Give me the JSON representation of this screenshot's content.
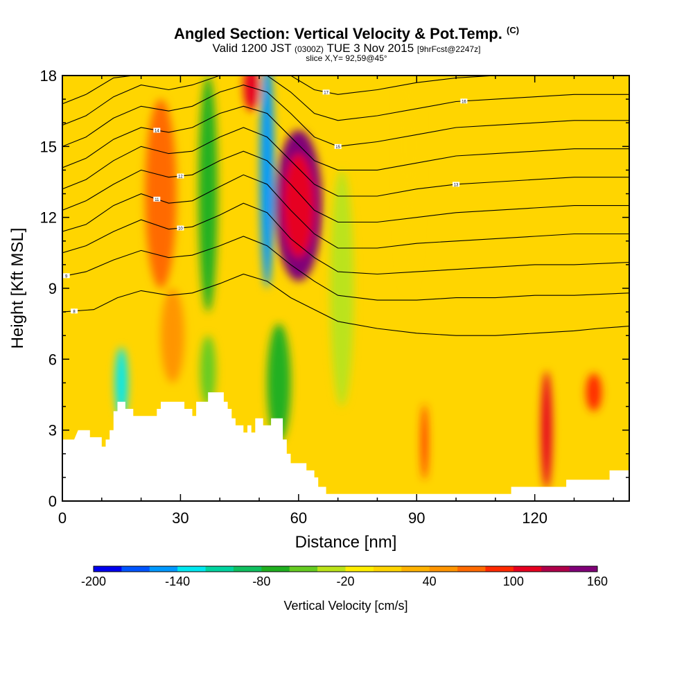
{
  "header": {
    "title": "Angled Section: Vertical Velocity & Pot.Temp.",
    "title_unit": "(C)",
    "valid_prefix": "Valid 1200 JST",
    "valid_zulu": "(0300Z)",
    "valid_date": "TUE 3 Nov 2015",
    "forecast": "[9hrFcst@2247z]",
    "slice": "slice X,Y= 92,59@45°"
  },
  "chart_data": {
    "type": "heatmap",
    "xlabel": "Distance [nm]",
    "ylabel": "Height [Kft MSL]",
    "xlim": [
      0,
      144
    ],
    "ylim": [
      0,
      18
    ],
    "x_ticks": [
      0,
      30,
      60,
      90,
      120
    ],
    "y_ticks": [
      0,
      3,
      6,
      9,
      12,
      15,
      18
    ],
    "grid": false,
    "legend": "colorbar-bottom",
    "fill_variable": "Vertical Velocity",
    "contour_variable": "Pot.Temp.",
    "background_value_cm_s": 0,
    "features": [
      {
        "x": 60,
        "y": 12.5,
        "w": 6,
        "h": 3.2,
        "value": 140
      },
      {
        "x": 60,
        "y": 12.5,
        "w": 4,
        "h": 2.2,
        "value": 110
      },
      {
        "x": 25,
        "y": 13.0,
        "w": 4,
        "h": 4.0,
        "value": 60
      },
      {
        "x": 28,
        "y": 7.0,
        "w": 3,
        "h": 2.0,
        "value": 55
      },
      {
        "x": 37,
        "y": 13.0,
        "w": 2.4,
        "h": 5.0,
        "value": -70
      },
      {
        "x": 52,
        "y": 14.0,
        "w": 1.8,
        "h": 5.0,
        "value": -150
      },
      {
        "x": 48,
        "y": 17.5,
        "w": 2.0,
        "h": 1.0,
        "value": 100
      },
      {
        "x": 55,
        "y": 5.0,
        "w": 3.0,
        "h": 2.5,
        "value": -80
      },
      {
        "x": 15,
        "y": 5.0,
        "w": 1.6,
        "h": 1.5,
        "value": -130
      },
      {
        "x": 37,
        "y": 5.5,
        "w": 2.0,
        "h": 1.5,
        "value": -50
      },
      {
        "x": 92,
        "y": 2.5,
        "w": 0.8,
        "h": 1.6,
        "value": 90
      },
      {
        "x": 123,
        "y": 3.0,
        "w": 1.4,
        "h": 2.5,
        "value": 100
      },
      {
        "x": 135,
        "y": 4.6,
        "w": 2.0,
        "h": 0.8,
        "value": 80
      },
      {
        "x": 88,
        "y": 15.0,
        "w": 2.5,
        "h": 6.0,
        "value": 15
      },
      {
        "x": 71,
        "y": 9.0,
        "w": 3.0,
        "h": 5.0,
        "value": -25
      }
    ],
    "terrain_kft": [
      [
        0,
        2.6
      ],
      [
        3,
        2.6
      ],
      [
        4,
        3.0
      ],
      [
        7,
        3.0
      ],
      [
        7,
        2.7
      ],
      [
        10,
        2.7
      ],
      [
        10,
        2.3
      ],
      [
        11,
        2.3
      ],
      [
        11,
        2.6
      ],
      [
        12,
        2.6
      ],
      [
        12,
        3.0
      ],
      [
        13,
        3.0
      ],
      [
        13,
        3.8
      ],
      [
        14,
        3.8
      ],
      [
        14,
        4.2
      ],
      [
        16,
        4.2
      ],
      [
        16,
        3.9
      ],
      [
        18,
        3.9
      ],
      [
        18,
        3.6
      ],
      [
        24,
        3.6
      ],
      [
        24,
        3.9
      ],
      [
        25,
        3.9
      ],
      [
        25,
        4.2
      ],
      [
        31,
        4.2
      ],
      [
        31,
        3.9
      ],
      [
        33,
        3.9
      ],
      [
        33,
        3.6
      ],
      [
        34,
        3.6
      ],
      [
        34,
        4.2
      ],
      [
        37,
        4.2
      ],
      [
        37,
        4.6
      ],
      [
        41,
        4.6
      ],
      [
        41,
        4.2
      ],
      [
        42,
        4.2
      ],
      [
        42,
        3.9
      ],
      [
        43,
        3.9
      ],
      [
        43,
        3.5
      ],
      [
        44,
        3.5
      ],
      [
        44,
        3.2
      ],
      [
        46,
        3.2
      ],
      [
        46,
        2.9
      ],
      [
        47,
        2.9
      ],
      [
        47,
        3.2
      ],
      [
        48,
        3.2
      ],
      [
        48,
        2.9
      ],
      [
        49,
        2.9
      ],
      [
        49,
        3.5
      ],
      [
        51,
        3.5
      ],
      [
        51,
        3.2
      ],
      [
        53,
        3.2
      ],
      [
        53,
        3.5
      ],
      [
        56,
        3.5
      ],
      [
        56,
        2.6
      ],
      [
        57,
        2.6
      ],
      [
        57,
        2.0
      ],
      [
        58,
        2.0
      ],
      [
        58,
        1.6
      ],
      [
        62,
        1.6
      ],
      [
        62,
        1.3
      ],
      [
        64,
        1.3
      ],
      [
        64,
        1.0
      ],
      [
        65,
        1.0
      ],
      [
        65,
        0.6
      ],
      [
        67,
        0.6
      ],
      [
        67,
        0.3
      ],
      [
        114,
        0.3
      ],
      [
        114,
        0.6
      ],
      [
        128,
        0.6
      ],
      [
        128,
        0.9
      ],
      [
        139,
        0.9
      ],
      [
        139,
        1.3
      ],
      [
        144,
        1.3
      ]
    ],
    "theta_contours": [
      {
        "label": "8",
        "label_x": 3,
        "pts": [
          [
            0,
            8.0
          ],
          [
            8,
            8.1
          ],
          [
            14,
            8.6
          ],
          [
            20,
            8.9
          ],
          [
            27,
            8.7
          ],
          [
            33,
            8.8
          ],
          [
            40,
            9.2
          ],
          [
            46,
            9.6
          ],
          [
            52,
            9.3
          ],
          [
            58,
            8.6
          ],
          [
            64,
            8.1
          ],
          [
            70,
            7.6
          ],
          [
            80,
            7.3
          ],
          [
            90,
            7.1
          ],
          [
            100,
            7.0
          ],
          [
            110,
            7.0
          ],
          [
            120,
            7.1
          ],
          [
            130,
            7.2
          ],
          [
            136,
            7.3
          ],
          [
            144,
            7.4
          ]
        ]
      },
      {
        "label": "9",
        "label_x": 1,
        "pts": [
          [
            0,
            9.5
          ],
          [
            6,
            9.7
          ],
          [
            13,
            10.2
          ],
          [
            20,
            10.6
          ],
          [
            27,
            10.3
          ],
          [
            33,
            10.4
          ],
          [
            40,
            10.8
          ],
          [
            46,
            11.2
          ],
          [
            52,
            10.8
          ],
          [
            58,
            10.0
          ],
          [
            64,
            9.3
          ],
          [
            70,
            8.7
          ],
          [
            80,
            8.5
          ],
          [
            90,
            8.5
          ],
          [
            100,
            8.6
          ],
          [
            110,
            8.6
          ],
          [
            120,
            8.7
          ],
          [
            130,
            8.7
          ],
          [
            144,
            8.8
          ]
        ]
      },
      {
        "label": "10",
        "label_x": 30,
        "pts": [
          [
            0,
            10.5
          ],
          [
            6,
            10.8
          ],
          [
            13,
            11.4
          ],
          [
            20,
            11.9
          ],
          [
            27,
            11.5
          ],
          [
            33,
            11.6
          ],
          [
            40,
            12.1
          ],
          [
            46,
            12.6
          ],
          [
            52,
            12.2
          ],
          [
            58,
            11.1
          ],
          [
            64,
            10.3
          ],
          [
            70,
            9.7
          ],
          [
            80,
            9.6
          ],
          [
            90,
            9.7
          ],
          [
            100,
            9.8
          ],
          [
            110,
            9.9
          ],
          [
            120,
            10.0
          ],
          [
            130,
            10.0
          ],
          [
            144,
            10.1
          ]
        ]
      },
      {
        "label": "11",
        "label_x": 24,
        "pts": [
          [
            0,
            11.4
          ],
          [
            6,
            11.7
          ],
          [
            13,
            12.5
          ],
          [
            20,
            13.0
          ],
          [
            27,
            12.6
          ],
          [
            33,
            12.7
          ],
          [
            40,
            13.3
          ],
          [
            46,
            13.8
          ],
          [
            52,
            13.4
          ],
          [
            58,
            12.3
          ],
          [
            64,
            11.3
          ],
          [
            70,
            10.7
          ],
          [
            80,
            10.7
          ],
          [
            90,
            10.9
          ],
          [
            100,
            11.0
          ],
          [
            110,
            11.1
          ],
          [
            120,
            11.2
          ],
          [
            130,
            11.3
          ],
          [
            144,
            11.3
          ]
        ]
      },
      {
        "label": "12",
        "label_x": 30,
        "pts": [
          [
            0,
            12.3
          ],
          [
            6,
            12.7
          ],
          [
            13,
            13.4
          ],
          [
            20,
            14.0
          ],
          [
            27,
            13.7
          ],
          [
            33,
            13.8
          ],
          [
            40,
            14.4
          ],
          [
            46,
            14.8
          ],
          [
            52,
            14.4
          ],
          [
            58,
            13.4
          ],
          [
            64,
            12.3
          ],
          [
            70,
            11.8
          ],
          [
            80,
            11.8
          ],
          [
            90,
            12.0
          ],
          [
            100,
            12.2
          ],
          [
            110,
            12.3
          ],
          [
            120,
            12.4
          ],
          [
            130,
            12.5
          ],
          [
            144,
            12.5
          ]
        ]
      },
      {
        "label": "13",
        "label_x": 100,
        "pts": [
          [
            0,
            13.2
          ],
          [
            6,
            13.6
          ],
          [
            13,
            14.4
          ],
          [
            20,
            15.0
          ],
          [
            27,
            14.7
          ],
          [
            33,
            14.8
          ],
          [
            40,
            15.4
          ],
          [
            46,
            15.8
          ],
          [
            52,
            15.4
          ],
          [
            58,
            14.4
          ],
          [
            64,
            13.4
          ],
          [
            70,
            12.9
          ],
          [
            80,
            12.9
          ],
          [
            90,
            13.2
          ],
          [
            100,
            13.4
          ],
          [
            110,
            13.5
          ],
          [
            120,
            13.6
          ],
          [
            130,
            13.7
          ],
          [
            144,
            13.7
          ]
        ]
      },
      {
        "label": "14",
        "label_x": 24,
        "pts": [
          [
            0,
            14.1
          ],
          [
            6,
            14.5
          ],
          [
            13,
            15.3
          ],
          [
            20,
            15.8
          ],
          [
            27,
            15.6
          ],
          [
            33,
            15.8
          ],
          [
            40,
            16.4
          ],
          [
            46,
            16.7
          ],
          [
            52,
            16.4
          ],
          [
            58,
            15.4
          ],
          [
            64,
            14.4
          ],
          [
            70,
            14.0
          ],
          [
            80,
            14.0
          ],
          [
            90,
            14.3
          ],
          [
            100,
            14.6
          ],
          [
            110,
            14.7
          ],
          [
            120,
            14.8
          ],
          [
            130,
            14.9
          ],
          [
            144,
            14.9
          ]
        ]
      },
      {
        "label": "15",
        "label_x": 70,
        "pts": [
          [
            0,
            15.0
          ],
          [
            6,
            15.4
          ],
          [
            13,
            16.2
          ],
          [
            20,
            16.7
          ],
          [
            27,
            16.5
          ],
          [
            33,
            16.7
          ],
          [
            40,
            17.3
          ],
          [
            46,
            17.6
          ],
          [
            52,
            17.3
          ],
          [
            58,
            16.4
          ],
          [
            64,
            15.4
          ],
          [
            70,
            15.0
          ],
          [
            80,
            15.2
          ],
          [
            90,
            15.5
          ],
          [
            100,
            15.8
          ],
          [
            110,
            15.9
          ],
          [
            120,
            16.0
          ],
          [
            130,
            16.1
          ],
          [
            144,
            16.1
          ]
        ]
      },
      {
        "label": "16",
        "label_x": 102,
        "pts": [
          [
            0,
            15.9
          ],
          [
            6,
            16.3
          ],
          [
            13,
            17.1
          ],
          [
            20,
            17.6
          ],
          [
            27,
            17.4
          ],
          [
            33,
            17.6
          ],
          [
            40,
            18.0
          ],
          [
            52,
            18.0
          ],
          [
            58,
            17.3
          ],
          [
            64,
            16.4
          ],
          [
            70,
            16.1
          ],
          [
            80,
            16.3
          ],
          [
            90,
            16.6
          ],
          [
            100,
            16.9
          ],
          [
            110,
            17.0
          ],
          [
            120,
            17.1
          ],
          [
            130,
            17.2
          ],
          [
            144,
            17.2
          ]
        ]
      },
      {
        "label": "17",
        "label_x": 67,
        "pts": [
          [
            0,
            16.8
          ],
          [
            6,
            17.2
          ],
          [
            13,
            17.9
          ],
          [
            18,
            18.0
          ],
          [
            52,
            18.0
          ],
          [
            58,
            18.0
          ],
          [
            64,
            17.4
          ],
          [
            70,
            17.2
          ],
          [
            80,
            17.4
          ],
          [
            90,
            17.7
          ],
          [
            100,
            17.9
          ],
          [
            110,
            18.0
          ]
        ]
      }
    ],
    "colorbar": {
      "title": "Vertical Velocity [cm/s]",
      "min": -200,
      "max": 160,
      "step": 20,
      "tick_values": [
        -200,
        -140,
        -80,
        -20,
        40,
        100,
        160
      ],
      "tick_labels": [
        "-200",
        "-140",
        "-80",
        "-20",
        "40",
        "100",
        "160"
      ],
      "colors": [
        "#0000ee",
        "#0055ff",
        "#0099ff",
        "#00e8f0",
        "#00d4a0",
        "#10c060",
        "#20b020",
        "#66cc22",
        "#bbe31a",
        "#ffee00",
        "#ffd500",
        "#ffb300",
        "#ff9500",
        "#ff6a00",
        "#ff2a00",
        "#e60020",
        "#b0004a",
        "#800078"
      ]
    }
  }
}
